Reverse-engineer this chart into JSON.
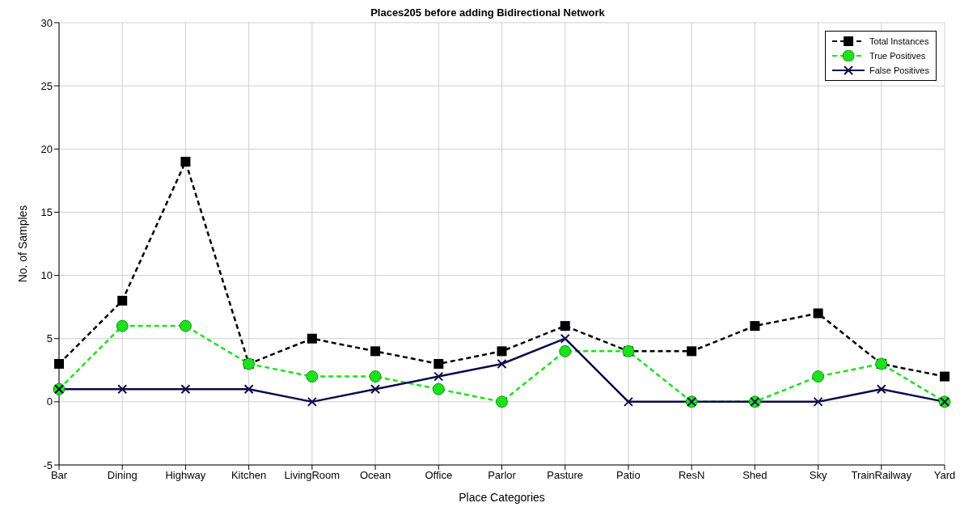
{
  "chart_data": {
    "type": "line",
    "title": "Places205 before adding Bidirectional Network",
    "xlabel": "Place Categories",
    "ylabel": "No. of Samples",
    "categories": [
      "Bar",
      "Dining",
      "Highway",
      "Kitchen",
      "LivingRoom",
      "Ocean",
      "Office",
      "Parlor",
      "Pasture",
      "Patio",
      "ResN",
      "Shed",
      "Sky",
      "TrainRailway",
      "Yard"
    ],
    "series": [
      {
        "name": "Total Instances",
        "color": "#000000",
        "marker": "square",
        "line_style": "dashed",
        "values": [
          3,
          8,
          19,
          3,
          5,
          4,
          3,
          4,
          6,
          4,
          4,
          6,
          7,
          3,
          2
        ]
      },
      {
        "name": "True Positives",
        "color": "#1fe01f",
        "marker": "circle",
        "line_style": "dashed",
        "values": [
          1,
          6,
          6,
          3,
          2,
          2,
          1,
          0,
          4,
          4,
          0,
          0,
          2,
          3,
          0
        ]
      },
      {
        "name": "False Positives",
        "color": "#0b0b4a",
        "marker": "cross",
        "line_style": "solid",
        "values": [
          1,
          1,
          1,
          1,
          0,
          1,
          2,
          3,
          5,
          0,
          0,
          0,
          0,
          1,
          0
        ]
      }
    ],
    "ylim": [
      -5,
      30
    ],
    "yticks": [
      -5,
      0,
      5,
      10,
      15,
      20,
      25,
      30
    ],
    "grid": true,
    "legend": "top right"
  }
}
